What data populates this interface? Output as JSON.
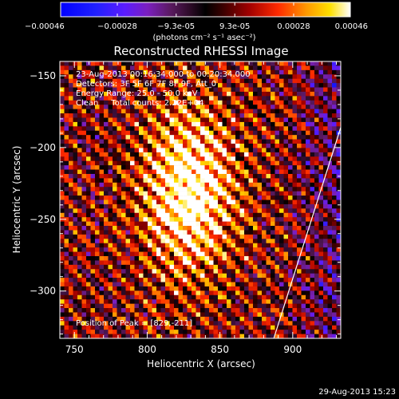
{
  "chart_data": {
    "type": "heatmap",
    "title": "Reconstructed RHESSI Image",
    "xlabel": "Heliocentric X (arcsec)",
    "ylabel": "Heliocentric Y (arcsec)",
    "xlim": [
      740,
      933
    ],
    "ylim": [
      -333,
      -140
    ],
    "xticks": [
      750,
      800,
      850,
      900
    ],
    "yticks": [
      -150,
      -200,
      -250,
      -300
    ],
    "grid": false,
    "colormap": "hot",
    "colorbar": {
      "position": "top",
      "range": [
        -0.00046,
        0.00046
      ],
      "tick_labels": [
        "-0.00046",
        "-0.00028",
        "-9.3e-05",
        "9.3e-05",
        "0.00028",
        "0.00046"
      ],
      "unit_label": "(photons cm⁻² s⁻¹ asec⁻²)"
    },
    "image": {
      "grid_size": 64,
      "peak": {
        "x": 829,
        "y": -211
      },
      "stripe_direction": "diagonal, upper-left to lower-right",
      "bright_core_range_x": [
        805,
        845
      ],
      "bright_core_range_y": [
        -250,
        -170
      ]
    },
    "limb_line": [
      [
        887,
        -333
      ],
      [
        933,
        -186
      ]
    ],
    "annotations": [
      "23-Aug-2013 00:16:34.000 to 00:20:34.000",
      "Detectors: 3F 5F 6F 7F 8F 9F, Att_0",
      "Energy Range: 25.0 - 50.0 keV",
      "Clean     Total counts: 2.22E+04"
    ],
    "peak_label": "Position of Peak = [829,-211]",
    "timestamp": "29-Aug-2013 15:23"
  }
}
